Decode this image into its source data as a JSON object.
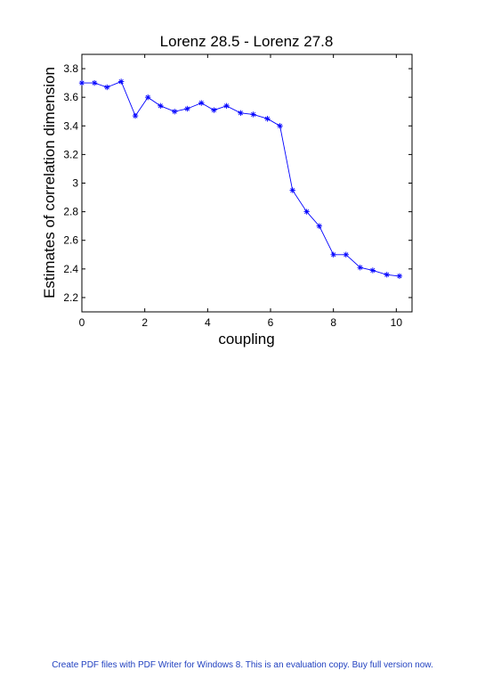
{
  "chart_data": {
    "type": "line",
    "title": "Lorenz 28.5 - Lorenz 27.8",
    "xlabel": "coupling",
    "ylabel": "Estimates of correlation dimension",
    "xlim": [
      0,
      10.5
    ],
    "ylim": [
      2.1,
      3.9
    ],
    "xticks": [
      0,
      2,
      4,
      6,
      8,
      10
    ],
    "yticks": [
      2.2,
      2.4,
      2.6,
      2.8,
      3,
      3.2,
      3.4,
      3.6,
      3.8
    ],
    "grid": false,
    "series": [
      {
        "color": "#0000ff",
        "marker": "asterisk",
        "x": [
          0,
          0.4,
          0.8,
          1.25,
          1.7,
          2.1,
          2.5,
          2.95,
          3.35,
          3.8,
          4.2,
          4.6,
          5.05,
          5.45,
          5.9,
          6.3,
          6.7,
          7.15,
          7.55,
          8.0,
          8.4,
          8.85,
          9.25,
          9.7,
          10.1
        ],
        "y": [
          3.7,
          3.7,
          3.67,
          3.71,
          3.47,
          3.6,
          3.54,
          3.5,
          3.52,
          3.56,
          3.51,
          3.54,
          3.49,
          3.48,
          3.45,
          3.4,
          2.95,
          2.8,
          2.7,
          2.5,
          2.5,
          2.41,
          2.39,
          2.36,
          2.35
        ]
      }
    ]
  },
  "footer": {
    "text": "Create PDF files with PDF Writer for Windows 8. This is an evaluation copy. Buy full version now."
  }
}
